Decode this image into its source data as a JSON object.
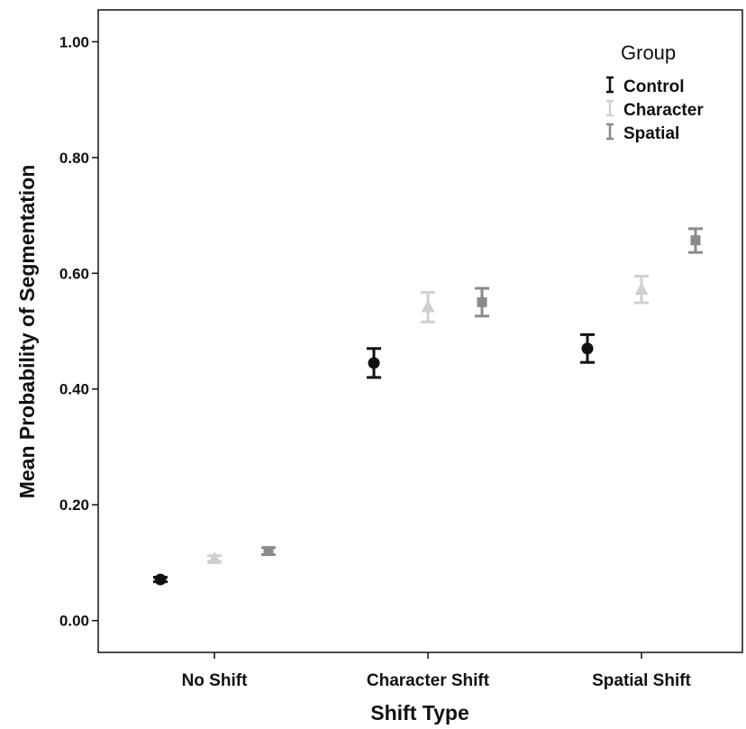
{
  "chart_data": {
    "type": "scatter",
    "title": "",
    "xlabel": "Shift Type",
    "ylabel": "Mean Probability of Segmentation",
    "categories": [
      "No Shift",
      "Character Shift",
      "Spatial Shift"
    ],
    "ylim": [
      -0.055,
      1.055
    ],
    "yticks": [
      "0.00",
      "0.20",
      "0.40",
      "0.60",
      "0.80",
      "1.00"
    ],
    "legend": {
      "title": "Group",
      "position": "top-right"
    },
    "grid": false,
    "error_bars": true,
    "series": [
      {
        "name": "Control",
        "marker": "circle",
        "color": "#111111",
        "values": [
          0.071,
          0.445,
          0.47
        ],
        "err_low": [
          0.067,
          0.42,
          0.446
        ],
        "err_high": [
          0.075,
          0.47,
          0.494
        ]
      },
      {
        "name": "Character",
        "marker": "triangle",
        "color": "#d0d0d0",
        "values": [
          0.107,
          0.542,
          0.572
        ],
        "err_low": [
          0.102,
          0.516,
          0.549
        ],
        "err_high": [
          0.112,
          0.567,
          0.595
        ]
      },
      {
        "name": "Spatial",
        "marker": "square",
        "color": "#8a8a8a",
        "values": [
          0.12,
          0.55,
          0.657
        ],
        "err_low": [
          0.114,
          0.526,
          0.636
        ],
        "err_high": [
          0.126,
          0.574,
          0.677
        ]
      }
    ]
  }
}
